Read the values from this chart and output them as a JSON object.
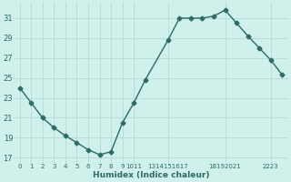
{
  "x": [
    0,
    1,
    2,
    3,
    4,
    5,
    6,
    7,
    8,
    9,
    10,
    11,
    13,
    14,
    15,
    16,
    17,
    18,
    19,
    20,
    21,
    22,
    23
  ],
  "y": [
    24.0,
    22.5,
    21.0,
    20.0,
    19.2,
    18.5,
    17.8,
    17.3,
    17.6,
    20.5,
    22.5,
    24.8,
    28.8,
    31.0,
    31.0,
    31.0,
    31.2,
    31.8,
    30.5,
    29.2,
    28.0,
    26.8,
    25.3
  ],
  "line_color": "#2d6b64",
  "marker": "D",
  "markersize": 2.5,
  "linewidth": 1.0,
  "bg_color": "#cff0eb",
  "grid_color": "#b8ddd8",
  "tick_color": "#2d6b64",
  "xlabel": "Humidex (Indice chaleur)",
  "ylabel_ticks": [
    17,
    19,
    21,
    23,
    25,
    27,
    29,
    31
  ],
  "xlim": [
    -0.5,
    23.5
  ],
  "ylim": [
    16.5,
    32.5
  ],
  "xtick_positions": [
    0,
    1,
    2,
    3,
    4,
    5,
    6,
    7,
    8,
    9,
    10,
    13,
    18,
    22
  ],
  "xtick_labels": [
    "0",
    "1",
    "2",
    "3",
    "4",
    "5",
    "6",
    "7",
    "8",
    "9",
    "1011",
    "1314151617",
    "18192021",
    "2223"
  ]
}
